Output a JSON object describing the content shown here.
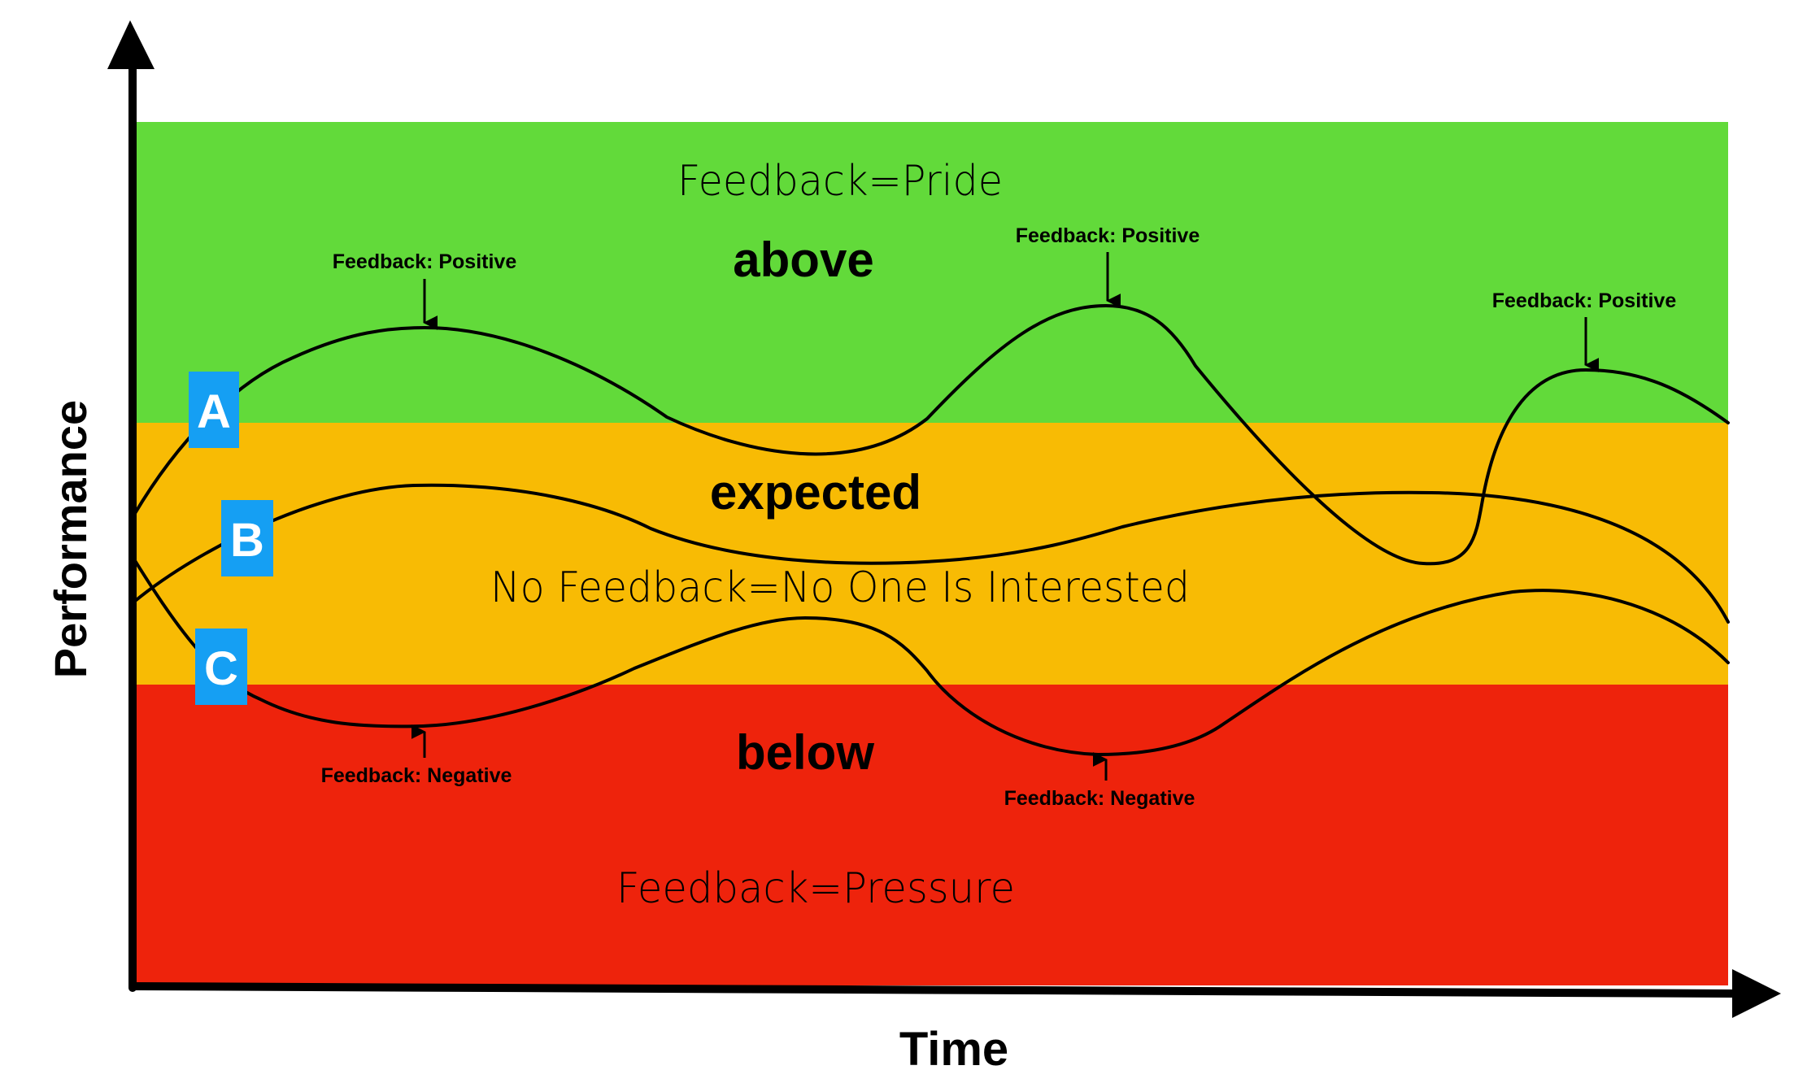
{
  "colors": {
    "above": "#62da3a",
    "expected": "#f8bb04",
    "below": "#ee230c",
    "badge": "#159ff3",
    "ink": "#000000"
  },
  "zones": {
    "above": {
      "title": "above",
      "caption": "Feedback=Pride"
    },
    "expected": {
      "title": "expected",
      "caption": "No Feedback=No One Is Interested"
    },
    "below": {
      "title": "below",
      "caption": "Feedback=Pressure"
    }
  },
  "axes": {
    "x_label": "Time",
    "y_label": "Performance"
  },
  "curves": [
    {
      "id": "A",
      "label": "A"
    },
    {
      "id": "B",
      "label": "B"
    },
    {
      "id": "C",
      "label": "C"
    }
  ],
  "annotations": {
    "a_peak_1": "Feedback: Positive",
    "a_peak_2": "Feedback: Positive",
    "a_peak_3": "Feedback: Positive",
    "c_trough_1": "Feedback: Negative",
    "c_trough_2": "Feedback: Negative"
  }
}
